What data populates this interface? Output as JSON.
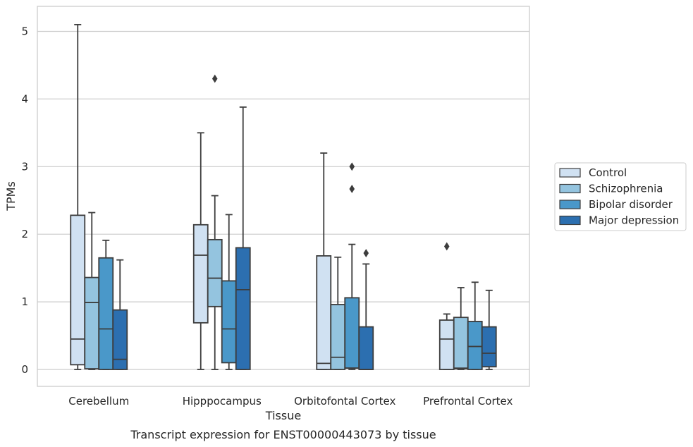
{
  "caption": "Transcript expression for ENST00000443073 by tissue",
  "chart_data": {
    "type": "box",
    "xlabel": "Tissue",
    "ylabel": "TPMs",
    "ylim": [
      -0.25,
      5.37
    ],
    "yticks": [
      0,
      1,
      2,
      3,
      4,
      5
    ],
    "grid": "horizontal",
    "legend_position": "right",
    "categories": [
      "Cerebellum",
      "Hipppocampus",
      "Orbitofontal Cortex",
      "Prefrontal Cortex"
    ],
    "series": [
      {
        "name": "Control",
        "color": "#d0e1f2",
        "boxes": [
          {
            "whislo": 0.0,
            "q1": 0.07,
            "med": 0.45,
            "q3": 2.28,
            "whishi": 5.1,
            "fliers": []
          },
          {
            "whislo": 0.0,
            "q1": 0.69,
            "med": 1.69,
            "q3": 2.14,
            "whishi": 3.5,
            "fliers": []
          },
          {
            "whislo": 0.0,
            "q1": 0.0,
            "med": 0.09,
            "q3": 1.68,
            "whishi": 3.2,
            "fliers": []
          },
          {
            "whislo": 0.0,
            "q1": 0.0,
            "med": 0.45,
            "q3": 0.73,
            "whishi": 0.82,
            "fliers": [
              1.82
            ]
          }
        ]
      },
      {
        "name": "Schizophrenia",
        "color": "#94c4df",
        "boxes": [
          {
            "whislo": 0.0,
            "q1": 0.01,
            "med": 0.99,
            "q3": 1.36,
            "whishi": 2.32,
            "fliers": []
          },
          {
            "whislo": 0.0,
            "q1": 0.93,
            "med": 1.35,
            "q3": 1.92,
            "whishi": 2.57,
            "fliers": [
              4.3
            ]
          },
          {
            "whislo": 0.0,
            "q1": 0.0,
            "med": 0.18,
            "q3": 0.96,
            "whishi": 1.66,
            "fliers": []
          },
          {
            "whislo": 0.0,
            "q1": 0.01,
            "med": 0.02,
            "q3": 0.77,
            "whishi": 1.21,
            "fliers": []
          }
        ]
      },
      {
        "name": "Bipolar disorder",
        "color": "#4a98c9",
        "boxes": [
          {
            "whislo": 0.0,
            "q1": 0.0,
            "med": 0.6,
            "q3": 1.65,
            "whishi": 1.91,
            "fliers": []
          },
          {
            "whislo": 0.0,
            "q1": 0.1,
            "med": 0.6,
            "q3": 1.31,
            "whishi": 2.29,
            "fliers": []
          },
          {
            "whislo": 0.0,
            "q1": 0.02,
            "med": 0.02,
            "q3": 1.06,
            "whishi": 1.85,
            "fliers": [
              2.67,
              3.0
            ]
          },
          {
            "whislo": 0.0,
            "q1": 0.0,
            "med": 0.34,
            "q3": 0.71,
            "whishi": 1.29,
            "fliers": []
          }
        ]
      },
      {
        "name": "Major depression",
        "color": "#2c6fb0",
        "boxes": [
          {
            "whislo": 0.0,
            "q1": 0.0,
            "med": 0.15,
            "q3": 0.88,
            "whishi": 1.62,
            "fliers": []
          },
          {
            "whislo": 0.0,
            "q1": 0.0,
            "med": 1.18,
            "q3": 1.8,
            "whishi": 3.88,
            "fliers": []
          },
          {
            "whislo": 0.0,
            "q1": 0.0,
            "med": 0.0,
            "q3": 0.63,
            "whishi": 1.56,
            "fliers": [
              1.72
            ]
          },
          {
            "whislo": 0.0,
            "q1": 0.04,
            "med": 0.24,
            "q3": 0.63,
            "whishi": 1.17,
            "fliers": []
          }
        ]
      }
    ]
  }
}
